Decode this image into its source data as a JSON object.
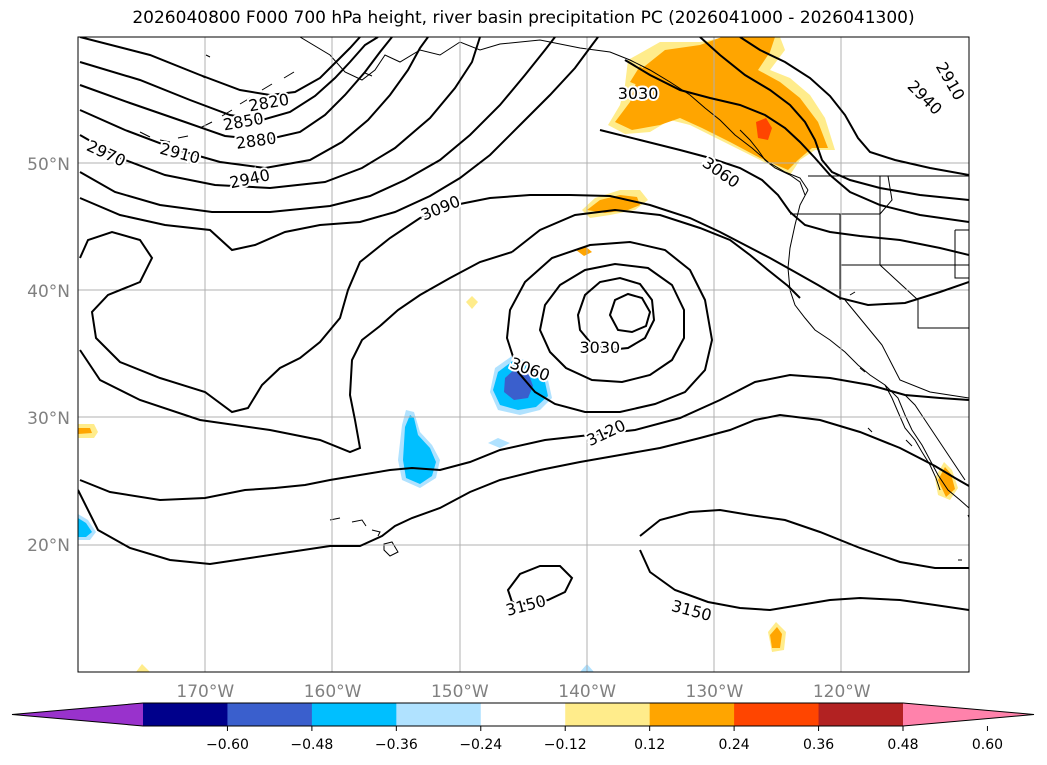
{
  "title": "2026040800 F000 700 hPa height, river basin precipitation PC (2026041000 - 2026041300)",
  "map": {
    "lon_min": -180,
    "lon_max": -110,
    "lat_min": 10,
    "lat_max": 60,
    "grid": true,
    "lat_labels": [
      {
        "lat": 50,
        "text": "50°N"
      },
      {
        "lat": 40,
        "text": "40°N"
      },
      {
        "lat": 30,
        "text": "30°N"
      },
      {
        "lat": 20,
        "text": "20°N"
      }
    ],
    "lon_labels": [
      {
        "lon": -170,
        "text": "170°W"
      },
      {
        "lon": -160,
        "text": "160°W"
      },
      {
        "lon": -150,
        "text": "150°W"
      },
      {
        "lon": -140,
        "text": "140°W"
      },
      {
        "lon": -130,
        "text": "130°W"
      },
      {
        "lon": -120,
        "text": "120°W"
      }
    ],
    "contour_labels": [
      {
        "text": "2820",
        "lon": -165.0,
        "lat": 54.8,
        "angle": -10
      },
      {
        "text": "2850",
        "lon": -167.0,
        "lat": 53.3,
        "angle": -10
      },
      {
        "text": "2880",
        "lon": -166.0,
        "lat": 51.8,
        "angle": -8
      },
      {
        "text": "2910",
        "lon": -172.0,
        "lat": 50.8,
        "angle": 15
      },
      {
        "text": "2970",
        "lon": -177.8,
        "lat": 50.8,
        "angle": 25
      },
      {
        "text": "2940",
        "lon": -166.5,
        "lat": 48.8,
        "angle": -12
      },
      {
        "text": "3090",
        "lon": -151.5,
        "lat": 46.5,
        "angle": -22
      },
      {
        "text": "3030",
        "lon": -136.0,
        "lat": 55.5,
        "angle": 0
      },
      {
        "text": "3060",
        "lon": -129.5,
        "lat": 49.3,
        "angle": 35
      },
      {
        "text": "2940",
        "lon": -113.5,
        "lat": 55.2,
        "angle": 45
      },
      {
        "text": "2910",
        "lon": -111.5,
        "lat": 56.5,
        "angle": 60
      },
      {
        "text": "3030",
        "lon": -139.0,
        "lat": 35.5,
        "angle": 0
      },
      {
        "text": "3060",
        "lon": -144.5,
        "lat": 33.8,
        "angle": 20
      },
      {
        "text": "3120",
        "lon": -138.5,
        "lat": 28.8,
        "angle": -25
      },
      {
        "text": "3150",
        "lon": -144.8,
        "lat": 15.2,
        "angle": -15
      },
      {
        "text": "3150",
        "lon": -131.8,
        "lat": 14.8,
        "angle": 15
      }
    ]
  },
  "colorbar": {
    "colors": [
      "#9932cc",
      "#00008b",
      "#3a5fcd",
      "#00bfff",
      "#b0e2ff",
      "#ffffff",
      "#ffec8b",
      "#ffa500",
      "#ff4500",
      "#b22222",
      "#ff82ab"
    ],
    "ticks": [
      "−0.60",
      "−0.48",
      "−0.36",
      "−0.24",
      "−0.12",
      "0.12",
      "0.24",
      "0.36",
      "0.48",
      "0.60"
    ]
  }
}
